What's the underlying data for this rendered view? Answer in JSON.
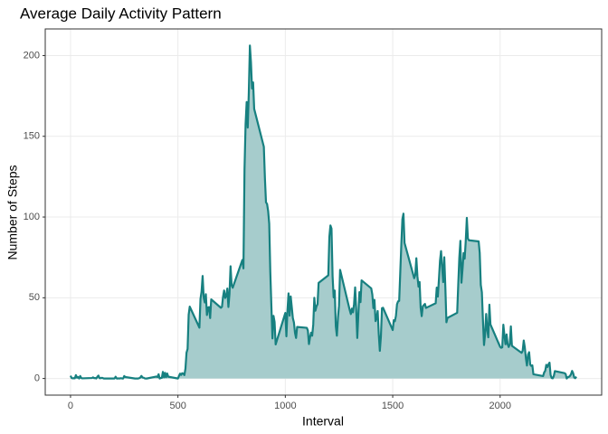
{
  "chart_data": {
    "type": "area",
    "title": "Average Daily Activity Pattern",
    "xlabel": "Interval",
    "ylabel": "Number of Steps",
    "color": "#178080",
    "fill": "#a6cccc",
    "grid": true,
    "xlim": [
      -117.75,
      2472.75
    ],
    "xticks": [
      0,
      500,
      1000,
      1500,
      2000
    ],
    "ylim": [
      -10.3,
      216.5
    ],
    "yticks": [
      0,
      50,
      100,
      150,
      200
    ],
    "x": [
      0,
      5,
      10,
      15,
      20,
      25,
      30,
      35,
      40,
      45,
      50,
      55,
      100,
      105,
      110,
      115,
      120,
      125,
      130,
      135,
      140,
      145,
      150,
      155,
      200,
      205,
      210,
      215,
      220,
      225,
      230,
      235,
      240,
      245,
      250,
      255,
      300,
      305,
      310,
      315,
      320,
      325,
      330,
      335,
      340,
      345,
      350,
      355,
      400,
      405,
      410,
      415,
      420,
      425,
      430,
      435,
      440,
      445,
      450,
      455,
      500,
      505,
      510,
      515,
      520,
      525,
      530,
      535,
      540,
      545,
      550,
      555,
      600,
      605,
      610,
      615,
      620,
      625,
      630,
      635,
      640,
      645,
      650,
      655,
      700,
      705,
      710,
      715,
      720,
      725,
      730,
      735,
      740,
      745,
      750,
      755,
      800,
      805,
      810,
      815,
      820,
      825,
      830,
      835,
      840,
      845,
      850,
      855,
      900,
      905,
      910,
      915,
      920,
      925,
      930,
      935,
      940,
      945,
      950,
      955,
      1000,
      1005,
      1010,
      1015,
      1020,
      1025,
      1030,
      1035,
      1040,
      1045,
      1050,
      1055,
      1100,
      1105,
      1110,
      1115,
      1120,
      1125,
      1130,
      1135,
      1140,
      1145,
      1150,
      1155,
      1200,
      1205,
      1210,
      1215,
      1220,
      1225,
      1230,
      1235,
      1240,
      1245,
      1250,
      1255,
      1300,
      1305,
      1310,
      1315,
      1320,
      1325,
      1330,
      1335,
      1340,
      1345,
      1350,
      1355,
      1400,
      1405,
      1410,
      1415,
      1420,
      1425,
      1430,
      1435,
      1440,
      1445,
      1450,
      1455,
      1500,
      1505,
      1510,
      1515,
      1520,
      1525,
      1530,
      1535,
      1540,
      1545,
      1550,
      1555,
      1600,
      1605,
      1610,
      1615,
      1620,
      1625,
      1630,
      1635,
      1640,
      1645,
      1650,
      1655,
      1700,
      1705,
      1710,
      1715,
      1720,
      1725,
      1730,
      1735,
      1740,
      1745,
      1750,
      1755,
      1800,
      1805,
      1810,
      1815,
      1820,
      1825,
      1830,
      1835,
      1840,
      1845,
      1850,
      1855,
      1900,
      1905,
      1910,
      1915,
      1920,
      1925,
      1930,
      1935,
      1940,
      1945,
      1950,
      1955,
      2000,
      2005,
      2010,
      2015,
      2020,
      2025,
      2030,
      2035,
      2040,
      2045,
      2050,
      2055,
      2100,
      2105,
      2110,
      2115,
      2120,
      2125,
      2130,
      2135,
      2140,
      2145,
      2150,
      2155,
      2200,
      2205,
      2210,
      2215,
      2220,
      2225,
      2230,
      2235,
      2240,
      2245,
      2250,
      2255,
      2300,
      2305,
      2310,
      2315,
      2320,
      2325,
      2330,
      2335,
      2340,
      2345,
      2350,
      2355
    ],
    "values": [
      1.7,
      0.3,
      0.1,
      0.2,
      0.1,
      2.1,
      0.5,
      0.9,
      0,
      1.5,
      0.3,
      0.1,
      0.3,
      0.7,
      0.2,
      0.3,
      0,
      1.1,
      1.8,
      0.2,
      0.2,
      0.4,
      0.3,
      0,
      0,
      0,
      1.1,
      0,
      0,
      0.1,
      0,
      0.2,
      0,
      0,
      1.5,
      0.9,
      0,
      0,
      0,
      0,
      0.2,
      0.6,
      1.6,
      0.6,
      0.5,
      0.1,
      0,
      0,
      1.2,
      0.9,
      2.6,
      0,
      0.3,
      0.4,
      4.1,
      0.7,
      3.5,
      0.8,
      3.1,
      1.1,
      0,
      1.6,
      3,
      2.2,
      3.3,
      3,
      2.1,
      6.1,
      16,
      18.3,
      39.5,
      44.5,
      31.5,
      49.3,
      53.8,
      63.5,
      50,
      47.1,
      52.2,
      39.3,
      44,
      44.2,
      37.4,
      49,
      43.8,
      44.4,
      50.5,
      54.5,
      49.9,
      51,
      55.7,
      44.3,
      52.3,
      69.5,
      57.8,
      56.2,
      73.4,
      68.2,
      129.4,
      157.5,
      171.2,
      155.4,
      177.3,
      206.2,
      195.9,
      179.6,
      183.4,
      167,
      143.5,
      124,
      109.1,
      108.1,
      103.7,
      95.9,
      66.2,
      45.2,
      24.8,
      38.8,
      35,
      21.1,
      40.6,
      26.1,
      42.4,
      52.7,
      38.9,
      50.8,
      44.3,
      37.4,
      34.7,
      28.3,
      25.1,
      31.9,
      31.4,
      29.7,
      21.3,
      25.5,
      28.4,
      26.5,
      33.4,
      50,
      42,
      44.6,
      46,
      59.2,
      63.9,
      87.7,
      94.8,
      92.8,
      63.4,
      50.2,
      54.5,
      32.4,
      26.5,
      37.7,
      45.1,
      67.3,
      42.3,
      39.9,
      43.3,
      41,
      46.2,
      56.4,
      42.8,
      25.1,
      40,
      53.5,
      47.3,
      60.8,
      55.8,
      52,
      43.6,
      48.7,
      35.5,
      37.5,
      41.8,
      27.5,
      17.1,
      26.1,
      43.6,
      43.8,
      30,
      36.1,
      35.5,
      38.8,
      46,
      47.8,
      48.1,
      65.3,
      82.9,
      98.7,
      102.1,
      84,
      62.1,
      64.1,
      74.5,
      63.2,
      56.9,
      59.8,
      43.9,
      38.6,
      44.7,
      45.5,
      46.2,
      43.7,
      46.6,
      56.3,
      50.7,
      61.2,
      72.7,
      78.9,
      68.9,
      59.7,
      75.1,
      56.5,
      34.8,
      37.5,
      40.7,
      58,
      74.7,
      85.3,
      59.3,
      67.8,
      77.7,
      74.2,
      85.3,
      99.5,
      86.6,
      85.6,
      84.9,
      77.8,
      58,
      53.4,
      36.3,
      20.7,
      27.4,
      40,
      30.2,
      25.5,
      45.7,
      33.5,
      19.6,
      19,
      19.3,
      33.3,
      26.8,
      21.2,
      27.3,
      21.3,
      19.5,
      21.3,
      32.3,
      20.2,
      15.9,
      17.2,
      23.5,
      19.2,
      12.5,
      8,
      14.7,
      16.3,
      8.7,
      7.8,
      8.1,
      2.6,
      1.5,
      3.7,
      4.8,
      8.5,
      7.1,
      8.7,
      9.8,
      2.2,
      0.3,
      0.1,
      1.6,
      4.6,
      3.3,
      2.8,
      0,
      0.8,
      1,
      1.6,
      2.6,
      4.7,
      3.3,
      0.6,
      0.2,
      1.1
    ]
  }
}
